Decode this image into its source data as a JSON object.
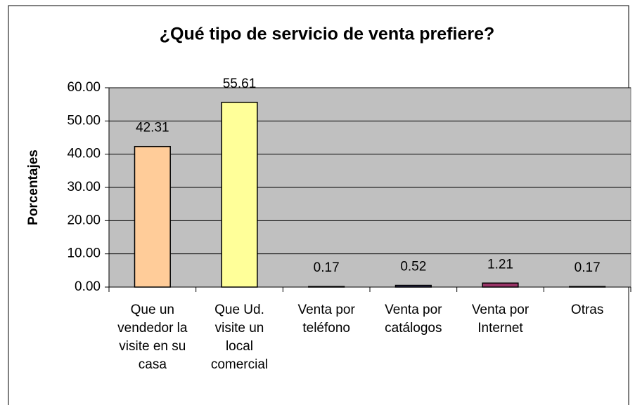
{
  "chart_data": {
    "type": "bar",
    "title": "¿Qué tipo de servicio de venta prefiere?",
    "y_label": "Porcentajes",
    "categories": [
      "Que un vendedor la visite en su casa",
      "Que Ud. visite un local comercial",
      "Venta por teléfono",
      "Venta por catálogos",
      "Venta por Internet",
      "Otras"
    ],
    "values": [
      42.31,
      55.61,
      0.17,
      0.52,
      1.21,
      0.17
    ],
    "colors": [
      "#ffcc99",
      "#ffff99",
      "#ccffff",
      "#333366",
      "#993366",
      "#ccffcc"
    ],
    "ylim": [
      0,
      60
    ],
    "yticks": [
      {
        "value": 0,
        "label": "0.00"
      },
      {
        "value": 10,
        "label": "10.00"
      },
      {
        "value": 20,
        "label": "20.00"
      },
      {
        "value": 30,
        "label": "30.00"
      },
      {
        "value": 40,
        "label": "40.00"
      },
      {
        "value": 50,
        "label": "50.00"
      },
      {
        "value": 60,
        "label": "60.00"
      }
    ],
    "grid": true
  }
}
